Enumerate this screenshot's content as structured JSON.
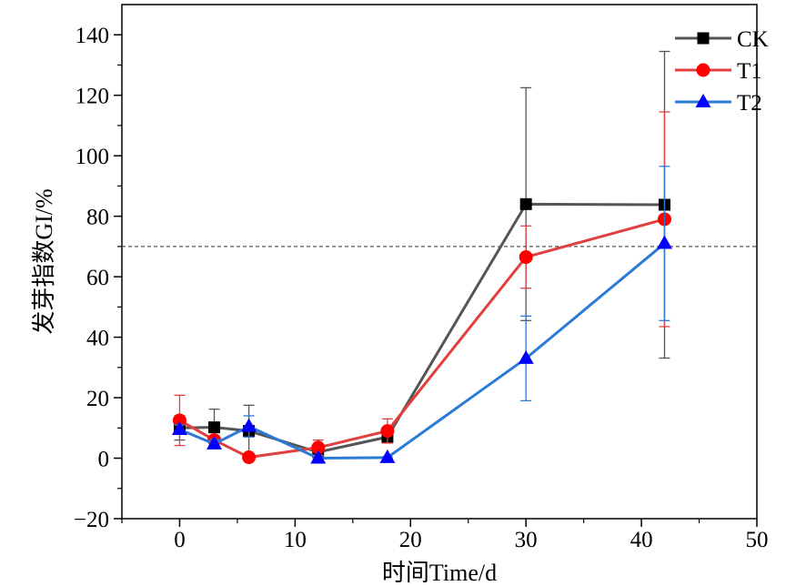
{
  "chart_data": {
    "type": "line",
    "xlabel": "时间Time/d",
    "ylabel": "发芽指数GI/%",
    "xlim": [
      -5,
      50
    ],
    "ylim": [
      -20,
      150
    ],
    "xticks": [
      0,
      10,
      20,
      30,
      40,
      50
    ],
    "yticks": [
      -20,
      0,
      20,
      40,
      60,
      80,
      100,
      120,
      140
    ],
    "x": [
      0,
      3,
      6,
      12,
      18,
      30,
      42
    ],
    "reference_line": {
      "y": 70,
      "style": "dashed"
    },
    "legend_position": "top-right",
    "grid": false,
    "series": [
      {
        "name": "CK",
        "color": "#555555",
        "marker_color": "#000000",
        "marker": "square",
        "values": [
          10,
          10.2,
          9,
          2,
          7,
          84,
          83.8
        ],
        "error": [
          4,
          6,
          8.5,
          1,
          1.5,
          38.5,
          50.7
        ]
      },
      {
        "name": "T1",
        "color": "#e04040",
        "marker_color": "#ff0000",
        "marker": "circle",
        "values": [
          12.5,
          6,
          0.3,
          3.5,
          9,
          66.5,
          79
        ],
        "error": [
          8.3,
          1,
          0.3,
          2.5,
          4,
          10.3,
          35.5
        ]
      },
      {
        "name": "T2",
        "color": "#2a7ad6",
        "marker_color": "#0000ff",
        "marker": "triangle",
        "values": [
          9.5,
          4.7,
          10.5,
          0,
          0.2,
          33,
          71
        ],
        "error": [
          1.5,
          1.5,
          3.5,
          0.5,
          0.3,
          14,
          25.5
        ]
      }
    ]
  }
}
